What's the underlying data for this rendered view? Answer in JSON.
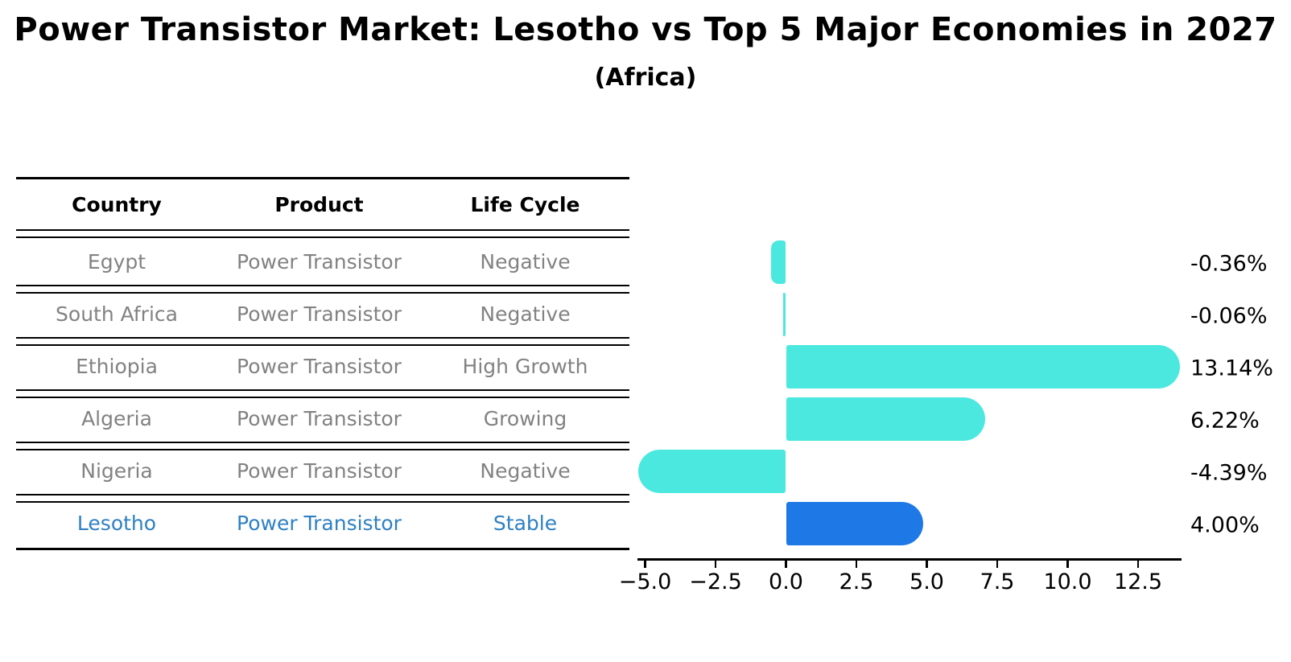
{
  "title": "Power Transistor Market: Lesotho vs Top 5 Major Economies in 2027",
  "subtitle": "(Africa)",
  "table": {
    "columns": [
      "Country",
      "Product",
      "Life Cycle"
    ],
    "rows": [
      {
        "country": "Egypt",
        "product": "Power Transistor",
        "life_cycle": "Negative",
        "highlight": false
      },
      {
        "country": "South Africa",
        "product": "Power Transistor",
        "life_cycle": "Negative",
        "highlight": false
      },
      {
        "country": "Ethiopia",
        "product": "Power Transistor",
        "life_cycle": "High Growth",
        "highlight": false
      },
      {
        "country": "Algeria",
        "product": "Power Transistor",
        "life_cycle": "Growing",
        "highlight": false
      },
      {
        "country": "Nigeria",
        "product": "Power Transistor",
        "life_cycle": "Negative",
        "highlight": false
      },
      {
        "country": "Lesotho",
        "product": "Power Transistor",
        "life_cycle": "Stable",
        "highlight": true
      }
    ]
  },
  "chart_data": {
    "type": "bar",
    "orientation": "horizontal",
    "title": "Power Transistor Market: Lesotho vs Top 5 Major Economies in 2027",
    "subtitle": "(Africa)",
    "categories": [
      "Egypt",
      "South Africa",
      "Ethiopia",
      "Algeria",
      "Nigeria",
      "Lesotho"
    ],
    "values": [
      -0.36,
      -0.06,
      13.14,
      6.22,
      -4.39,
      4.0
    ],
    "value_labels": [
      "-0.36%",
      "-0.06%",
      "13.14%",
      "6.22%",
      "-4.39%",
      "4.00%"
    ],
    "xticks": [
      -5.0,
      -2.5,
      0.0,
      2.5,
      5.0,
      7.5,
      10.0,
      12.5
    ],
    "xtick_labels": [
      "−5.0",
      "−2.5",
      "0.0",
      "2.5",
      "5.0",
      "7.5",
      "10.0",
      "12.5"
    ],
    "xlim": [
      -5.27,
      14.02
    ],
    "grid": false,
    "legend": "none",
    "bar_color": "#4BE8E0",
    "highlight_index": 5,
    "highlight_color": "#1E79E6",
    "highlight_edge_style": "dotted"
  },
  "colors": {
    "body_text": "#828282",
    "highlight_text": "#2F80C3",
    "axis": "#000000",
    "background": "#ffffff"
  }
}
